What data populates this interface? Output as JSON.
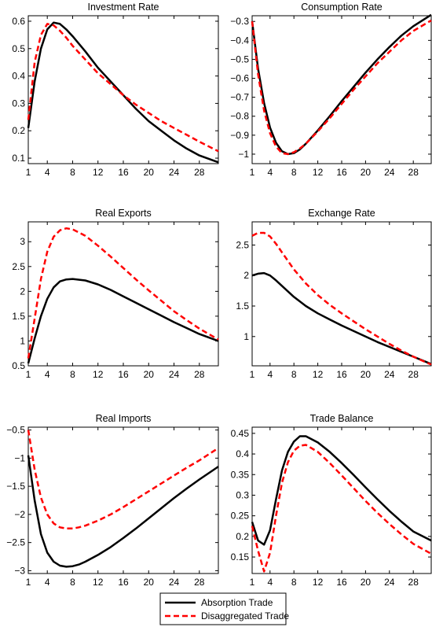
{
  "figure": {
    "legend": {
      "placement": "bottom-center",
      "entries": [
        {
          "label": "Absorption Trade",
          "color": "#000000",
          "style": "solid"
        },
        {
          "label": "Disaggregated Trade",
          "color": "#ff0000",
          "style": "dashed"
        }
      ]
    }
  },
  "chart_data": [
    {
      "type": "line",
      "title": "Investment Rate",
      "xlim": [
        1,
        31
      ],
      "ylim": [
        0.08,
        0.62
      ],
      "xticks": [
        1,
        4,
        8,
        12,
        16,
        20,
        24,
        28
      ],
      "yticks": [
        0.1,
        0.2,
        0.3,
        0.4,
        0.5,
        0.6
      ],
      "ytick_labels": [
        "0.1",
        "0.2",
        "0.3",
        "0.4",
        "0.5",
        "0.6"
      ],
      "series": [
        {
          "name": "Absorption Trade",
          "color": "#000000",
          "dashed": false,
          "x": [
            1,
            2,
            3,
            4,
            5,
            6,
            7,
            8,
            10,
            12,
            14,
            16,
            18,
            20,
            22,
            24,
            26,
            28,
            31
          ],
          "y": [
            0.21,
            0.38,
            0.5,
            0.57,
            0.595,
            0.59,
            0.57,
            0.545,
            0.49,
            0.43,
            0.38,
            0.33,
            0.28,
            0.235,
            0.2,
            0.165,
            0.135,
            0.11,
            0.085
          ]
        },
        {
          "name": "Disaggregated Trade",
          "color": "#ff0000",
          "dashed": true,
          "x": [
            1,
            2,
            3,
            4,
            5,
            6,
            7,
            8,
            10,
            12,
            14,
            16,
            18,
            20,
            22,
            24,
            26,
            28,
            31
          ],
          "y": [
            0.24,
            0.45,
            0.55,
            0.59,
            0.585,
            0.565,
            0.54,
            0.51,
            0.46,
            0.41,
            0.37,
            0.33,
            0.295,
            0.265,
            0.235,
            0.21,
            0.185,
            0.16,
            0.125
          ]
        }
      ]
    },
    {
      "type": "line",
      "title": "Consumption Rate",
      "xlim": [
        1,
        31
      ],
      "ylim": [
        -1.05,
        -0.27
      ],
      "xticks": [
        1,
        4,
        8,
        12,
        16,
        20,
        24,
        28
      ],
      "yticks": [
        -1,
        -0.9,
        -0.8,
        -0.7,
        -0.6,
        -0.5,
        -0.4,
        -0.3
      ],
      "ytick_labels": [
        "−1",
        "−0.9",
        "−0.8",
        "−0.7",
        "−0.6",
        "−0.5",
        "−0.4",
        "−0.3"
      ],
      "series": [
        {
          "name": "Absorption Trade",
          "color": "#000000",
          "dashed": false,
          "x": [
            1,
            2,
            3,
            4,
            5,
            6,
            7,
            8,
            9,
            10,
            12,
            14,
            16,
            18,
            20,
            22,
            24,
            26,
            28,
            31
          ],
          "y": [
            -0.3,
            -0.55,
            -0.73,
            -0.86,
            -0.94,
            -0.985,
            -1.0,
            -0.995,
            -0.975,
            -0.945,
            -0.875,
            -0.8,
            -0.72,
            -0.645,
            -0.57,
            -0.5,
            -0.435,
            -0.375,
            -0.325,
            -0.265
          ]
        },
        {
          "name": "Disaggregated Trade",
          "color": "#ff0000",
          "dashed": true,
          "x": [
            1,
            2,
            3,
            4,
            5,
            6,
            7,
            8,
            9,
            10,
            12,
            14,
            16,
            18,
            20,
            22,
            24,
            26,
            28,
            31
          ],
          "y": [
            -0.3,
            -0.58,
            -0.77,
            -0.89,
            -0.96,
            -0.995,
            -1.0,
            -0.99,
            -0.97,
            -0.945,
            -0.88,
            -0.81,
            -0.735,
            -0.66,
            -0.59,
            -0.52,
            -0.46,
            -0.4,
            -0.35,
            -0.295
          ]
        }
      ]
    },
    {
      "type": "line",
      "title": "Real Exports",
      "xlim": [
        1,
        31
      ],
      "ylim": [
        0.5,
        3.4
      ],
      "xticks": [
        1,
        4,
        8,
        12,
        16,
        20,
        24,
        28
      ],
      "yticks": [
        0.5,
        1,
        1.5,
        2,
        2.5,
        3
      ],
      "ytick_labels": [
        "0.5",
        "1",
        "1.5",
        "2",
        "2.5",
        "3"
      ],
      "series": [
        {
          "name": "Absorption Trade",
          "color": "#000000",
          "dashed": false,
          "x": [
            1,
            2,
            3,
            4,
            5,
            6,
            7,
            8,
            10,
            12,
            14,
            16,
            18,
            20,
            22,
            24,
            26,
            28,
            31
          ],
          "y": [
            0.55,
            1.05,
            1.5,
            1.85,
            2.08,
            2.2,
            2.24,
            2.25,
            2.22,
            2.14,
            2.03,
            1.9,
            1.77,
            1.64,
            1.51,
            1.38,
            1.26,
            1.14,
            1.0
          ]
        },
        {
          "name": "Disaggregated Trade",
          "color": "#ff0000",
          "dashed": true,
          "x": [
            1,
            2,
            3,
            4,
            5,
            6,
            7,
            8,
            10,
            12,
            14,
            16,
            18,
            20,
            22,
            24,
            26,
            28,
            31
          ],
          "y": [
            0.65,
            1.45,
            2.25,
            2.8,
            3.1,
            3.23,
            3.27,
            3.25,
            3.12,
            2.92,
            2.7,
            2.47,
            2.24,
            2.02,
            1.81,
            1.6,
            1.42,
            1.25,
            1.03
          ]
        }
      ]
    },
    {
      "type": "line",
      "title": "Exchange Rate",
      "xlim": [
        1,
        31
      ],
      "ylim": [
        0.52,
        2.88
      ],
      "xticks": [
        1,
        4,
        8,
        12,
        16,
        20,
        24,
        28
      ],
      "yticks": [
        1,
        1.5,
        2,
        2.5
      ],
      "ytick_labels": [
        "1",
        "1.5",
        "2",
        "2.5"
      ],
      "series": [
        {
          "name": "Absorption Trade",
          "color": "#000000",
          "dashed": false,
          "x": [
            1,
            2,
            3,
            4,
            5,
            6,
            7,
            8,
            10,
            12,
            14,
            16,
            18,
            20,
            22,
            24,
            26,
            28,
            31
          ],
          "y": [
            2.0,
            2.03,
            2.04,
            2.0,
            1.92,
            1.83,
            1.74,
            1.65,
            1.5,
            1.38,
            1.28,
            1.18,
            1.09,
            1.0,
            0.91,
            0.83,
            0.75,
            0.67,
            0.55
          ]
        },
        {
          "name": "Disaggregated Trade",
          "color": "#ff0000",
          "dashed": true,
          "x": [
            1,
            2,
            3,
            4,
            5,
            6,
            7,
            8,
            10,
            12,
            14,
            16,
            18,
            20,
            22,
            24,
            26,
            28,
            31
          ],
          "y": [
            2.65,
            2.7,
            2.7,
            2.64,
            2.52,
            2.38,
            2.24,
            2.1,
            1.87,
            1.68,
            1.52,
            1.38,
            1.25,
            1.12,
            1.0,
            0.88,
            0.77,
            0.67,
            0.54
          ]
        }
      ]
    },
    {
      "type": "line",
      "title": "Real Imports",
      "xlim": [
        1,
        31
      ],
      "ylim": [
        -3.05,
        -0.45
      ],
      "xticks": [
        1,
        4,
        8,
        12,
        16,
        20,
        24,
        28
      ],
      "yticks": [
        -3,
        -2.5,
        -2,
        -1.5,
        -1,
        -0.5
      ],
      "ytick_labels": [
        "−3",
        "−2.5",
        "−2",
        "−1.5",
        "−1",
        "−0.5"
      ],
      "series": [
        {
          "name": "Absorption Trade",
          "color": "#000000",
          "dashed": false,
          "x": [
            1,
            2,
            3,
            4,
            5,
            6,
            7,
            8,
            9,
            10,
            12,
            14,
            16,
            18,
            20,
            22,
            24,
            26,
            28,
            31
          ],
          "y": [
            -0.95,
            -1.75,
            -2.35,
            -2.68,
            -2.84,
            -2.91,
            -2.93,
            -2.92,
            -2.89,
            -2.84,
            -2.72,
            -2.58,
            -2.42,
            -2.25,
            -2.07,
            -1.89,
            -1.71,
            -1.54,
            -1.38,
            -1.15
          ]
        },
        {
          "name": "Disaggregated Trade",
          "color": "#ff0000",
          "dashed": true,
          "x": [
            1,
            2,
            3,
            4,
            5,
            6,
            7,
            8,
            9,
            10,
            12,
            14,
            16,
            18,
            20,
            22,
            24,
            26,
            28,
            31
          ],
          "y": [
            -0.5,
            -1.2,
            -1.7,
            -2.0,
            -2.16,
            -2.23,
            -2.25,
            -2.25,
            -2.23,
            -2.2,
            -2.11,
            -2.0,
            -1.87,
            -1.73,
            -1.59,
            -1.45,
            -1.31,
            -1.17,
            -1.04,
            -0.82
          ]
        }
      ]
    },
    {
      "type": "line",
      "title": "Trade Balance",
      "xlim": [
        1,
        31
      ],
      "ylim": [
        0.11,
        0.465
      ],
      "xticks": [
        1,
        4,
        8,
        12,
        16,
        20,
        24,
        28
      ],
      "yticks": [
        0.15,
        0.2,
        0.25,
        0.3,
        0.35,
        0.4,
        0.45
      ],
      "ytick_labels": [
        "0.15",
        "0.2",
        "0.25",
        "0.3",
        "0.35",
        "0.4",
        "0.45"
      ],
      "series": [
        {
          "name": "Absorption Trade",
          "color": "#000000",
          "dashed": false,
          "x": [
            1,
            2,
            3,
            4,
            5,
            6,
            7,
            8,
            9,
            10,
            12,
            14,
            16,
            18,
            20,
            22,
            24,
            26,
            28,
            31
          ],
          "y": [
            0.235,
            0.19,
            0.18,
            0.215,
            0.29,
            0.36,
            0.405,
            0.43,
            0.443,
            0.443,
            0.428,
            0.405,
            0.378,
            0.349,
            0.319,
            0.29,
            0.262,
            0.236,
            0.212,
            0.19
          ]
        },
        {
          "name": "Disaggregated Trade",
          "color": "#ff0000",
          "dashed": true,
          "x": [
            1,
            2,
            3,
            4,
            5,
            6,
            7,
            8,
            9,
            10,
            12,
            14,
            16,
            18,
            20,
            22,
            24,
            26,
            28,
            31
          ],
          "y": [
            0.225,
            0.165,
            0.115,
            0.16,
            0.25,
            0.33,
            0.38,
            0.408,
            0.42,
            0.422,
            0.405,
            0.378,
            0.348,
            0.317,
            0.286,
            0.257,
            0.23,
            0.205,
            0.182,
            0.158
          ]
        }
      ]
    }
  ]
}
